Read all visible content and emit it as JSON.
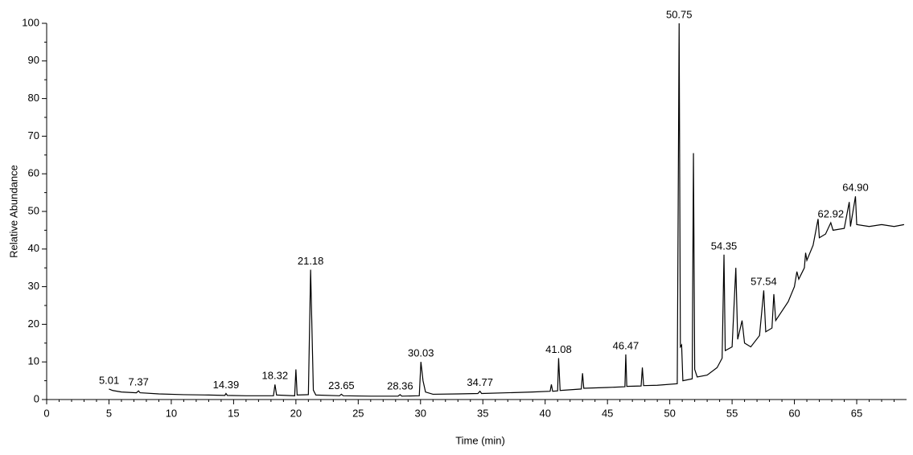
{
  "chart_data": {
    "type": "line",
    "xlabel": "Time (min)",
    "ylabel": "Relative Abundance",
    "xlim": [
      0,
      69
    ],
    "ylim": [
      0,
      100
    ],
    "xticks": [
      0,
      5,
      10,
      15,
      20,
      25,
      30,
      35,
      40,
      45,
      50,
      55,
      60,
      65
    ],
    "xminorticks": [
      1,
      2,
      3,
      4,
      6,
      7,
      8,
      9,
      11,
      12,
      13,
      14,
      16,
      17,
      18,
      19,
      21,
      22,
      23,
      24,
      26,
      27,
      28,
      29,
      31,
      32,
      33,
      34,
      36,
      37,
      38,
      39,
      41,
      42,
      43,
      44,
      46,
      47,
      48,
      49,
      51,
      52,
      53,
      54,
      56,
      57,
      58,
      59,
      61,
      62,
      63,
      64,
      66,
      67,
      68
    ],
    "yticks": [
      0,
      10,
      20,
      30,
      40,
      50,
      60,
      70,
      80,
      90,
      100
    ],
    "yminorticks": [
      5,
      15,
      25,
      35,
      45,
      55,
      65,
      75,
      85,
      95
    ],
    "color": "#000000",
    "x": [
      5.0,
      5.3,
      6.0,
      7.2,
      7.37,
      7.5,
      9,
      11,
      13,
      14.3,
      14.39,
      14.5,
      16,
      18.2,
      18.32,
      18.45,
      19.9,
      20.0,
      20.1,
      21.0,
      21.18,
      21.4,
      21.6,
      23.5,
      23.65,
      23.8,
      26,
      28.2,
      28.36,
      28.5,
      29.9,
      30.03,
      30.2,
      30.4,
      31,
      33,
      34.6,
      34.77,
      34.9,
      37,
      39,
      40.4,
      40.5,
      40.6,
      41.0,
      41.08,
      41.2,
      42.9,
      43.0,
      43.1,
      45,
      46.4,
      46.47,
      46.55,
      47.7,
      47.8,
      47.9,
      49,
      50.6,
      50.75,
      50.85,
      50.95,
      51.05,
      51.8,
      51.9,
      52.0,
      52.2,
      53,
      53.8,
      54.2,
      54.35,
      54.45,
      55.0,
      55.3,
      55.45,
      55.8,
      56,
      56.5,
      57.2,
      57.54,
      57.7,
      58.2,
      58.35,
      58.5,
      59.5,
      60.0,
      60.2,
      60.35,
      60.8,
      60.9,
      61.0,
      61.5,
      61.9,
      62.0,
      62.5,
      62.92,
      63.1,
      64,
      64.4,
      64.5,
      64.9,
      65.0,
      66,
      67,
      68,
      68.8
    ],
    "values": [
      2.8,
      2.4,
      2.0,
      1.8,
      2.3,
      1.8,
      1.5,
      1.3,
      1.2,
      1.1,
      1.6,
      1.1,
      1.0,
      1.0,
      4.0,
      1.2,
      1.0,
      8.0,
      1.2,
      1.3,
      34.5,
      2.5,
      1.2,
      1.0,
      1.4,
      1.0,
      0.9,
      0.9,
      1.3,
      0.9,
      1.0,
      10.0,
      5.0,
      2.0,
      1.4,
      1.5,
      1.6,
      2.2,
      1.6,
      1.8,
      2.0,
      2.2,
      4.0,
      2.2,
      2.3,
      11.0,
      2.4,
      2.8,
      7.0,
      3.0,
      3.2,
      3.4,
      12.0,
      3.5,
      3.6,
      8.5,
      3.7,
      3.8,
      4.2,
      100,
      14,
      14.5,
      5,
      5.5,
      65.5,
      8,
      6,
      6.5,
      8.5,
      11,
      38.5,
      13,
      14,
      35,
      16,
      21,
      15,
      14,
      17,
      29,
      18,
      19,
      28,
      21,
      26,
      30,
      34,
      32,
      35,
      39,
      37,
      41,
      48,
      43,
      44,
      47,
      45,
      45.5,
      52.5,
      46,
      54,
      46.5,
      46,
      46.5,
      46,
      46.5
    ],
    "annotations": [
      {
        "x": 5.01,
        "y": 2.8,
        "label": "5.01"
      },
      {
        "x": 7.37,
        "y": 2.3,
        "label": "7.37"
      },
      {
        "x": 14.39,
        "y": 1.6,
        "label": "14.39"
      },
      {
        "x": 18.32,
        "y": 4.0,
        "label": "18.32"
      },
      {
        "x": 21.18,
        "y": 34.5,
        "label": "21.18"
      },
      {
        "x": 23.65,
        "y": 1.4,
        "label": "23.65"
      },
      {
        "x": 28.36,
        "y": 1.3,
        "label": "28.36"
      },
      {
        "x": 30.03,
        "y": 10.0,
        "label": "30.03"
      },
      {
        "x": 34.77,
        "y": 2.2,
        "label": "34.77"
      },
      {
        "x": 41.08,
        "y": 11.0,
        "label": "41.08"
      },
      {
        "x": 46.47,
        "y": 12.0,
        "label": "46.47"
      },
      {
        "x": 50.75,
        "y": 100,
        "label": "50.75"
      },
      {
        "x": 54.35,
        "y": 38.5,
        "label": "54.35"
      },
      {
        "x": 57.54,
        "y": 29,
        "label": "57.54"
      },
      {
        "x": 62.92,
        "y": 47,
        "label": "62.92"
      },
      {
        "x": 64.9,
        "y": 54,
        "label": "64.90"
      }
    ]
  }
}
